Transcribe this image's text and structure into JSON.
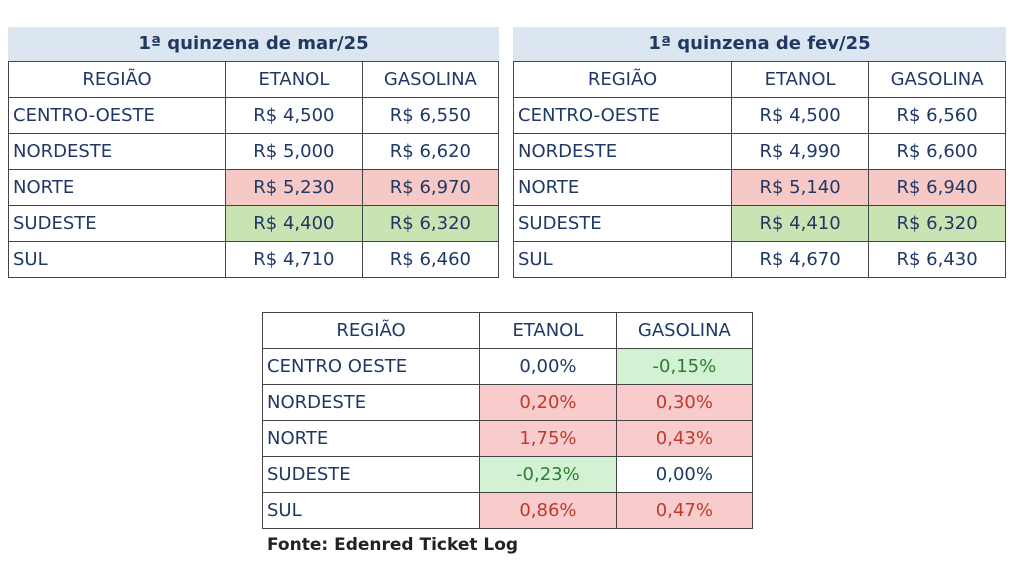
{
  "tables": [
    {
      "title": "1ª quinzena de mar/25",
      "header": [
        "REGIÃO",
        "ETANOL",
        "GASOLINA"
      ],
      "rows": [
        [
          "CENTRO-OESTE",
          "R$ 4,500",
          "R$ 6,550"
        ],
        [
          "NORDESTE",
          "R$ 5,000",
          "R$ 6,620"
        ],
        [
          "NORTE",
          "R$ 5,230",
          "R$ 6,970"
        ],
        [
          "SUDESTE",
          "R$ 4,400",
          "R$ 6,320"
        ],
        [
          "SUL",
          "R$ 4,710",
          "R$ 6,460"
        ]
      ]
    },
    {
      "title": "1ª quinzena de fev/25",
      "header": [
        "REGIÃO",
        "ETANOL",
        "GASOLINA"
      ],
      "rows": [
        [
          "CENTRO-OESTE",
          "R$ 4,500",
          "R$ 6,560"
        ],
        [
          "NORDESTE",
          "R$ 4,990",
          "R$ 6,600"
        ],
        [
          "NORTE",
          "R$ 5,140",
          "R$ 6,940"
        ],
        [
          "SUDESTE",
          "R$ 4,410",
          "R$ 6,320"
        ],
        [
          "SUL",
          "R$ 4,670",
          "R$ 6,430"
        ]
      ]
    },
    {
      "header": [
        "REGIÃO",
        "ETANOL",
        "GASOLINA"
      ],
      "rows": [
        [
          "CENTRO OESTE",
          "0,00%",
          "-0,15%"
        ],
        [
          "NORDESTE",
          "0,20%",
          "0,30%"
        ],
        [
          "NORTE",
          "1,75%",
          "0,43%"
        ],
        [
          "SUDESTE",
          "-0,23%",
          "0,00%"
        ],
        [
          "SUL",
          "0,86%",
          "0,47%"
        ]
      ]
    }
  ],
  "source": "Fonte: Edenred Ticket Log"
}
